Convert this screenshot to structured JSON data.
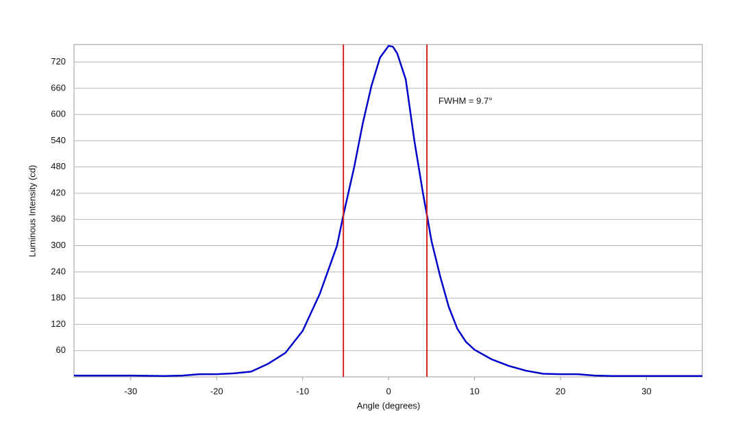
{
  "chart_data": {
    "type": "line",
    "x_label": "Angle (degrees)",
    "y_label": "Luminous Intensity (cd)",
    "annotation": {
      "text": "FWHM = 9.7°",
      "x": 5.8,
      "y": 630
    },
    "vlines": [
      -5.26,
      4.46
    ],
    "vline_color": "#d62020",
    "xlim": [
      -36.6,
      36.5
    ],
    "ylim": [
      0,
      760
    ],
    "xticks": [
      -30,
      -20,
      -10,
      0,
      10,
      20,
      30
    ],
    "yticks": [
      60,
      120,
      180,
      240,
      300,
      360,
      420,
      480,
      540,
      600,
      660,
      720
    ],
    "grid": true,
    "series": [
      {
        "name": "Intensity",
        "color": "#0000cc",
        "x": [
          -36.6,
          -30,
          -26,
          -24,
          -22,
          -20,
          -18,
          -16,
          -14,
          -12,
          -10,
          -8,
          -6,
          -5.26,
          -4,
          -3,
          -2,
          -1,
          0,
          0.5,
          1,
          2,
          3,
          4,
          4.46,
          5,
          6,
          7,
          8,
          9,
          10,
          12,
          14,
          16,
          18,
          20,
          22,
          24,
          26,
          30,
          36.5
        ],
        "values": [
          3,
          3,
          2,
          3,
          6,
          6,
          8,
          12,
          30,
          55,
          105,
          190,
          300,
          370,
          480,
          580,
          665,
          730,
          757,
          755,
          740,
          680,
          540,
          420,
          370,
          310,
          230,
          160,
          110,
          80,
          62,
          40,
          25,
          14,
          7,
          6,
          6,
          3,
          2,
          2,
          2
        ]
      }
    ]
  }
}
